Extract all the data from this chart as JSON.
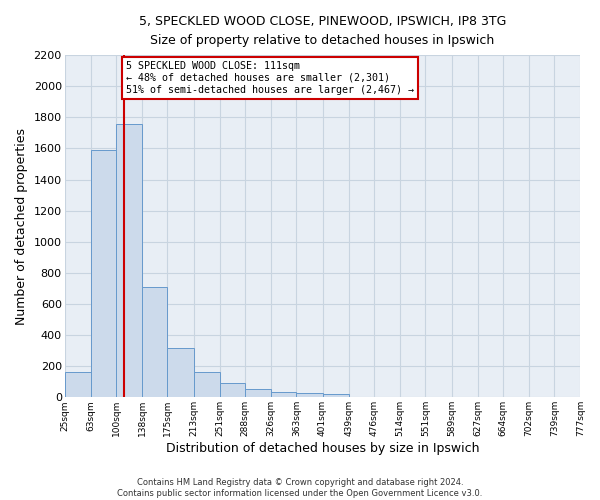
{
  "title1": "5, SPECKLED WOOD CLOSE, PINEWOOD, IPSWICH, IP8 3TG",
  "title2": "Size of property relative to detached houses in Ipswich",
  "xlabel": "Distribution of detached houses by size in Ipswich",
  "ylabel": "Number of detached properties",
  "footer1": "Contains HM Land Registry data © Crown copyright and database right 2024.",
  "footer2": "Contains public sector information licensed under the Open Government Licence v3.0.",
  "bar_color": "#ccdaeb",
  "bar_edge_color": "#6699cc",
  "grid_color": "#c8d4e0",
  "background_color": "#e8eef5",
  "vline_color": "#cc0000",
  "property_size_sqm": 111,
  "annotation_line1": "5 SPECKLED WOOD CLOSE: 111sqm",
  "annotation_line2": "← 48% of detached houses are smaller (2,301)",
  "annotation_line3": "51% of semi-detached houses are larger (2,467) →",
  "bin_labels": [
    "25sqm",
    "63sqm",
    "100sqm",
    "138sqm",
    "175sqm",
    "213sqm",
    "251sqm",
    "288sqm",
    "326sqm",
    "363sqm",
    "401sqm",
    "439sqm",
    "476sqm",
    "514sqm",
    "551sqm",
    "589sqm",
    "627sqm",
    "664sqm",
    "702sqm",
    "739sqm",
    "777sqm"
  ],
  "bin_edges": [
    25,
    63,
    100,
    138,
    175,
    213,
    251,
    288,
    326,
    363,
    401,
    439,
    476,
    514,
    551,
    589,
    627,
    664,
    702,
    739,
    777
  ],
  "bar_values": [
    160,
    1590,
    1760,
    710,
    315,
    160,
    90,
    55,
    35,
    25,
    20,
    0,
    0,
    0,
    0,
    0,
    0,
    0,
    0,
    0
  ],
  "ylim": [
    0,
    2200
  ],
  "yticks": [
    0,
    200,
    400,
    600,
    800,
    1000,
    1200,
    1400,
    1600,
    1800,
    2000,
    2200
  ]
}
